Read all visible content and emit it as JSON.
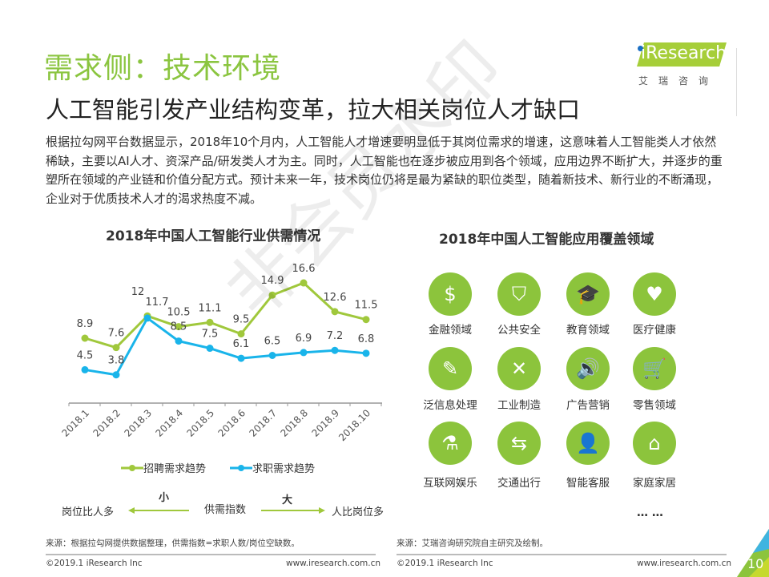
{
  "header": {
    "title": "需求侧：技术环境",
    "subtitle": "人工智能引发产业结构变革，拉大相关岗位人才缺口",
    "logo_text": "iResearch",
    "logo_cn": "艾瑞咨询"
  },
  "paragraph": "根据拉勾网平台数据显示，2018年10个月内，人工智能人才增速要明显低于其岗位需求的增速，这意味着人工智能类人才依然稀缺，主要以AI人才、资深产品/研发类人才为主。同时，人工智能也在逐步被应用到各个领域，应用边界不断扩大，并逐步的重塑所在领域的产业链和价值分配方式。预计未来一年，技术岗位仍将是最为紧缺的职位类型，随着新技术、新行业的不断涌现，企业对于优质技术人才的渴求热度不减。",
  "watermark": "非会员水印",
  "chart_data": {
    "type": "line",
    "title": "2018年中国人工智能行业供需情况",
    "categories": [
      "2018.1",
      "2018.2",
      "2018.3",
      "2018.4",
      "2018.5",
      "2018.6",
      "2018.7",
      "2018.8",
      "2018.9",
      "2018.10"
    ],
    "series": [
      {
        "name": "招聘需求趋势",
        "color": "#a0c83c",
        "values": [
          8.9,
          7.6,
          12,
          10.5,
          11.1,
          9.5,
          14.9,
          16.6,
          12.6,
          11.5
        ]
      },
      {
        "name": "求职需求趋势",
        "color": "#19b4ea",
        "values": [
          4.5,
          3.8,
          11.7,
          8.5,
          7.5,
          6.1,
          6.5,
          6.9,
          7.2,
          6.8
        ]
      }
    ],
    "legend": "bottom",
    "grid": false
  },
  "scale": {
    "small": "小",
    "large": "大",
    "center": "供需指数",
    "left": "岗位比人多",
    "right": "人比岗位多"
  },
  "domains": {
    "title": "2018年中国人工智能应用覆盖领域",
    "items": [
      {
        "label": "金融领域",
        "icon": "money-bag-icon",
        "glyph": "$"
      },
      {
        "label": "公共安全",
        "icon": "shield-icon",
        "glyph": "⛉"
      },
      {
        "label": "教育领域",
        "icon": "graduation-cap-icon",
        "glyph": "🎓"
      },
      {
        "label": "医疗健康",
        "icon": "heart-icon",
        "glyph": "♥"
      },
      {
        "label": "泛信息处理",
        "icon": "notepad-icon",
        "glyph": "✎"
      },
      {
        "label": "工业制造",
        "icon": "tools-icon",
        "glyph": "✕"
      },
      {
        "label": "广告营销",
        "icon": "speaker-icon",
        "glyph": "🔊"
      },
      {
        "label": "零售领域",
        "icon": "cart-icon",
        "glyph": "🛒"
      },
      {
        "label": "互联网娱乐",
        "icon": "flask-icon",
        "glyph": "⚗"
      },
      {
        "label": "交通出行",
        "icon": "signpost-icon",
        "glyph": "⇆"
      },
      {
        "label": "智能客服",
        "icon": "agent-icon",
        "glyph": "👤"
      },
      {
        "label": "家庭家居",
        "icon": "house-icon",
        "glyph": "⌂"
      }
    ],
    "more": "… …"
  },
  "footer": {
    "source_left": "来源：根据拉勾网提供数据整理，供需指数=求职人数/岗位空缺数。",
    "source_right": "来源：艾瑞咨询研究院自主研究及绘制。",
    "copyright": "©2019.1 iResearch Inc",
    "website": "www.iresearch.com.cn",
    "page": "10"
  }
}
